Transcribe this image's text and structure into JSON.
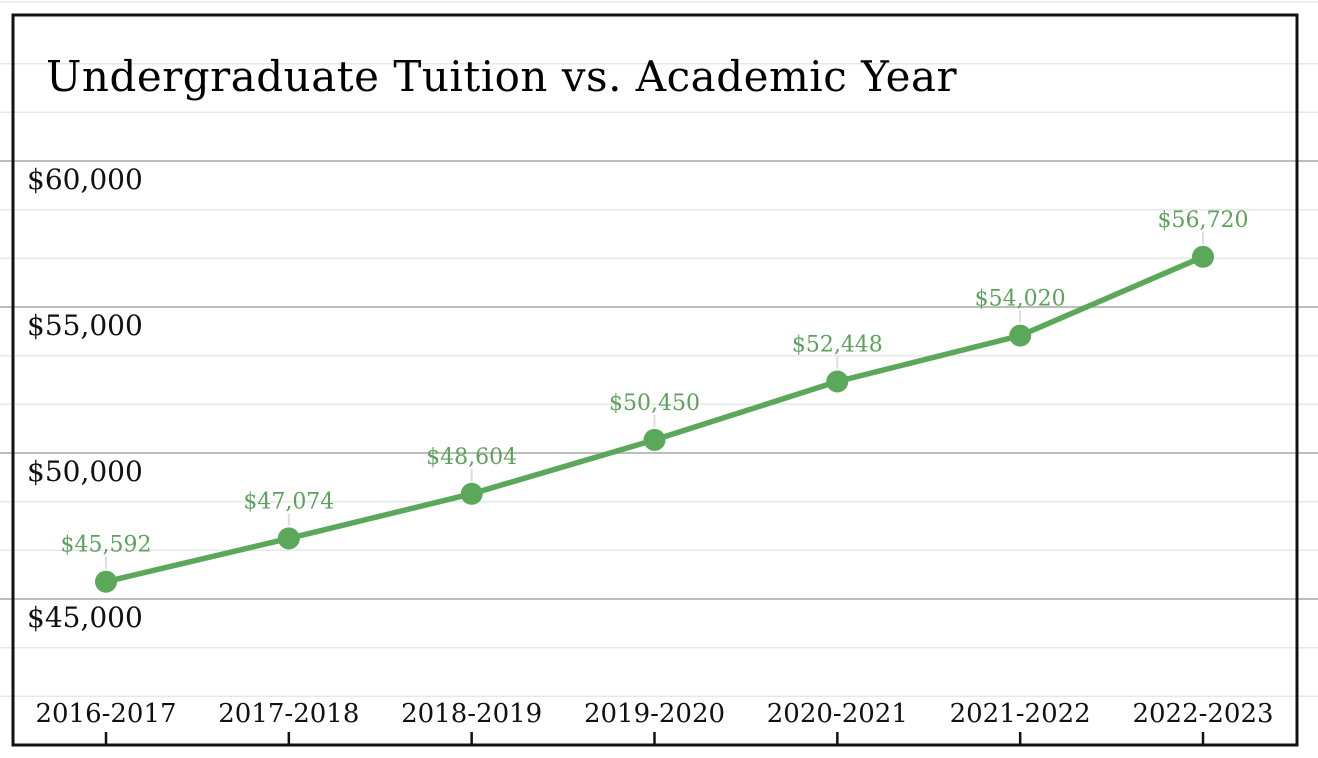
{
  "chart_data": {
    "type": "line",
    "title": "Undergraduate Tuition vs. Academic Year",
    "xlabel": "",
    "ylabel": "",
    "categories": [
      "2016-2017",
      "2017-2018",
      "2018-2019",
      "2019-2020",
      "2020-2021",
      "2021-2022",
      "2022-2023"
    ],
    "values": [
      45592,
      47074,
      48604,
      50450,
      52448,
      54020,
      56720
    ],
    "point_labels": [
      "$45,592",
      "$47,074",
      "$48,604",
      "$50,450",
      "$52,448",
      "$54,020",
      "$56,720"
    ],
    "series_name": "Undergraduate Tuition",
    "ylim": [
      40000,
      65000
    ],
    "y_ticks": [
      {
        "value": 60000,
        "label": "$60,000"
      },
      {
        "value": 55000,
        "label": "$55,000"
      },
      {
        "value": 50000,
        "label": "$50,000"
      },
      {
        "value": 45000,
        "label": "$45,000"
      }
    ],
    "y_minor_divisions_per_major": 3,
    "grid": "horizontal",
    "legend": "none",
    "colors": {
      "line": "#5BA85B",
      "point": "#5BA85B",
      "point_label": "#5CA25C",
      "major_grid": "#bdbdbd",
      "minor_grid": "#e7e7e7",
      "leader_line": "#dddddd",
      "frame": "#111111",
      "axis_text": "#111111",
      "title_text": "#000000",
      "background": "#ffffff"
    }
  }
}
